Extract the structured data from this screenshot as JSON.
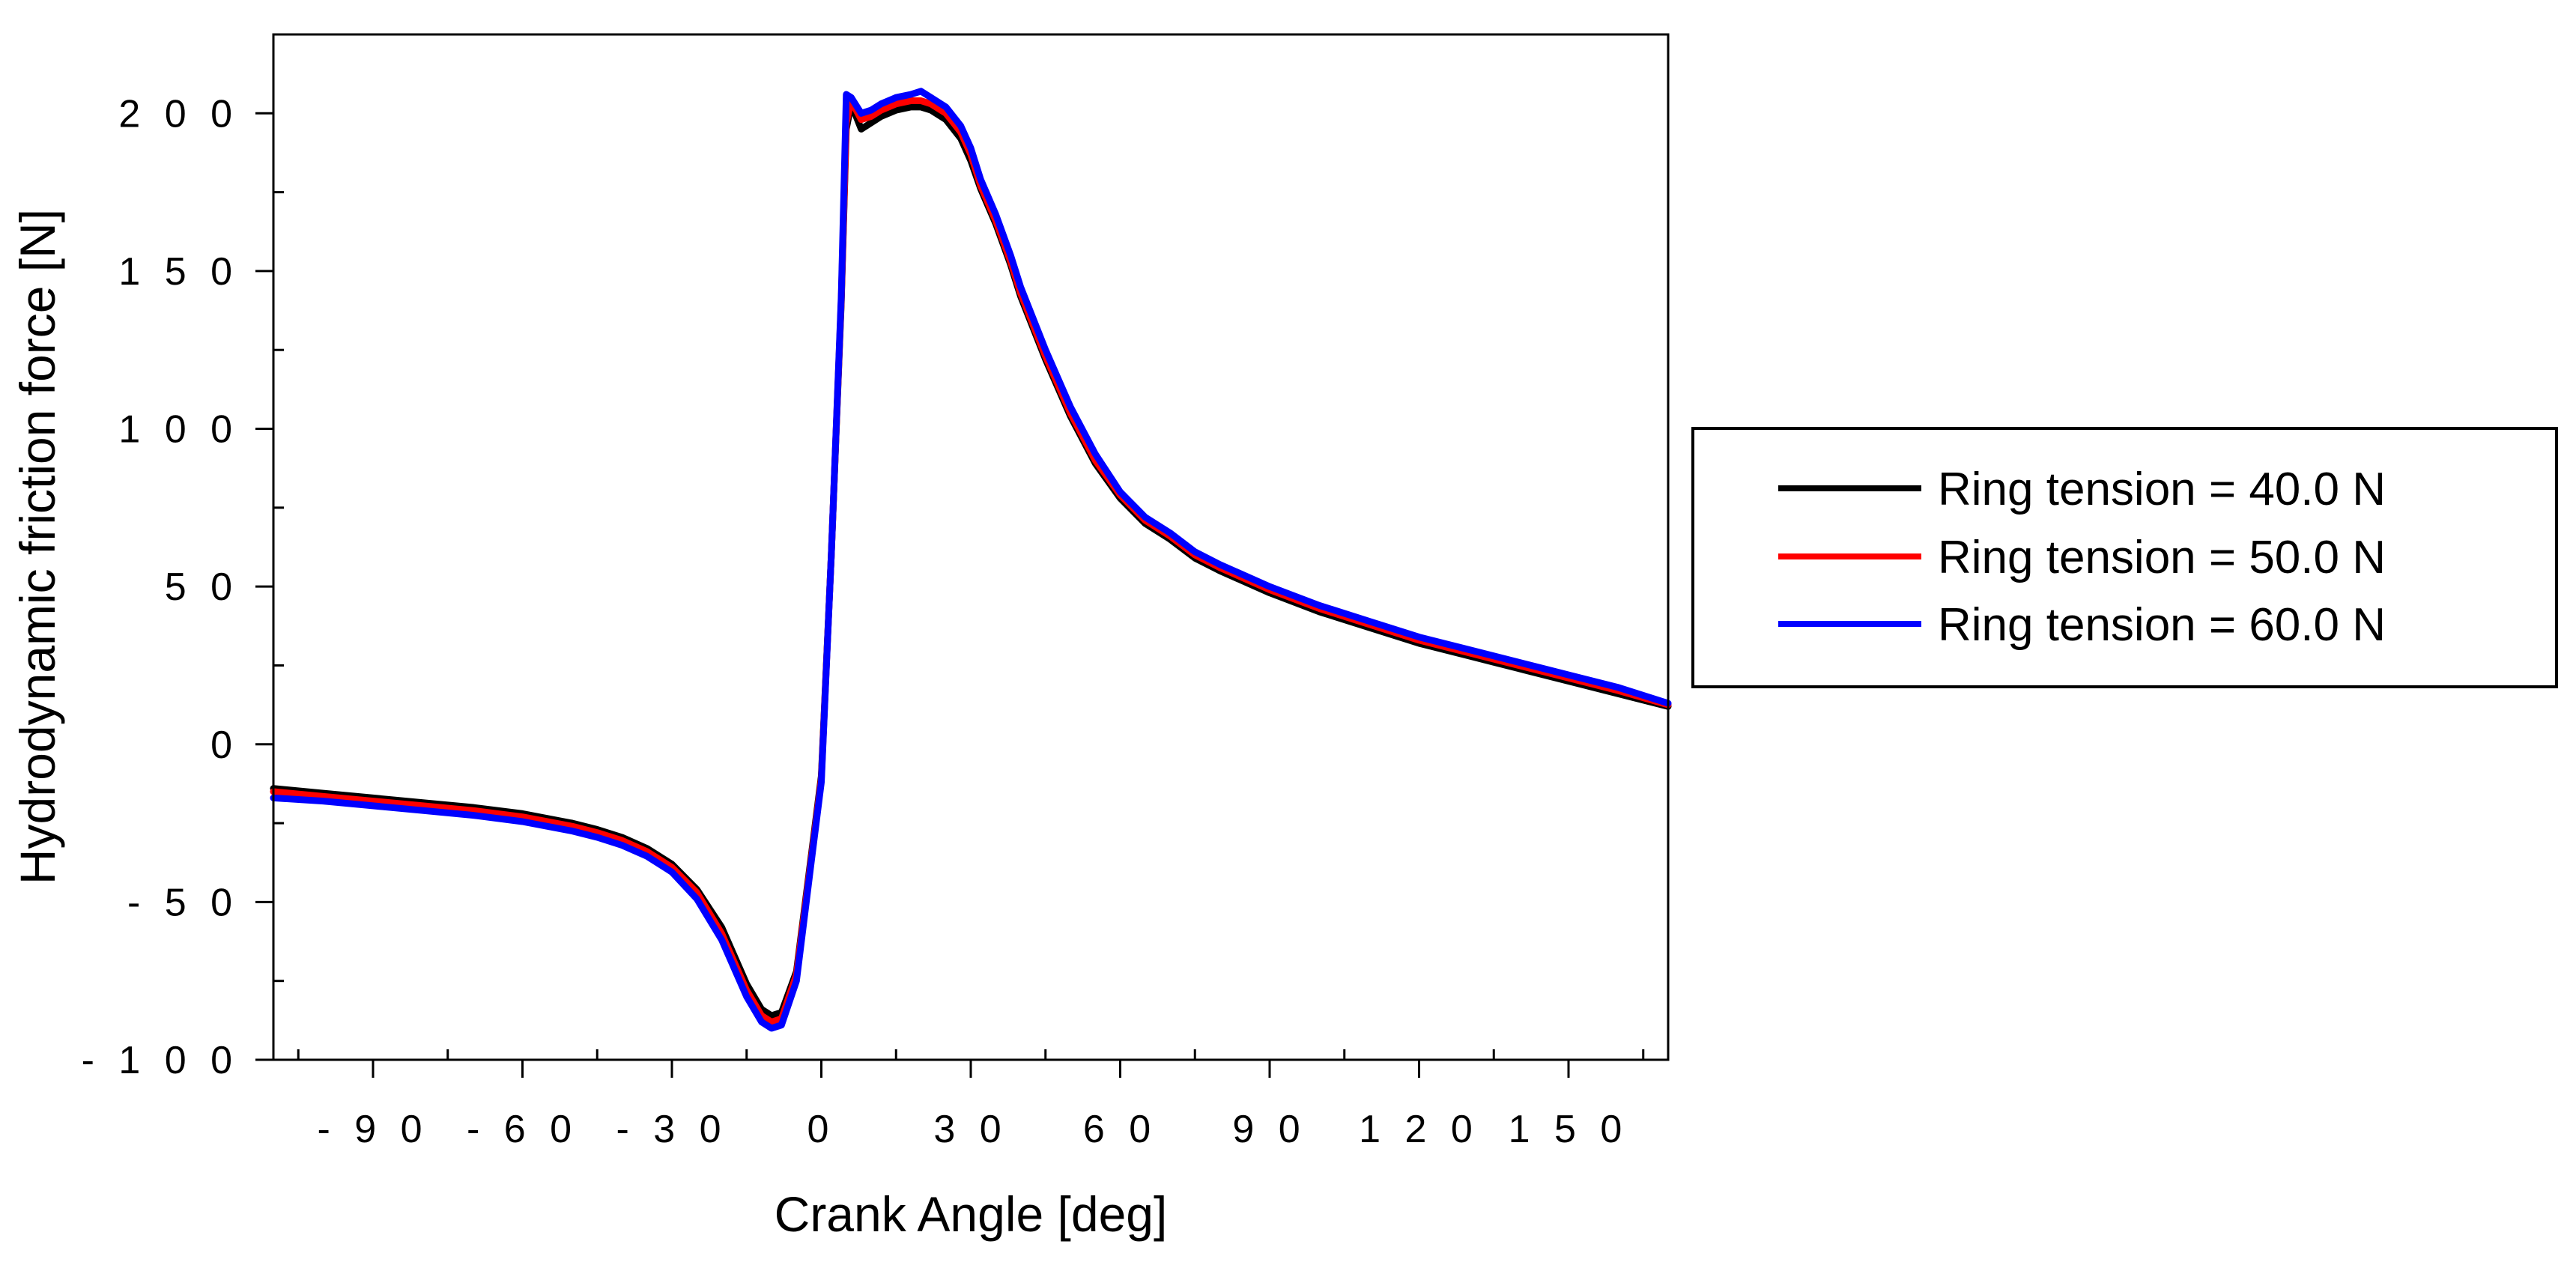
{
  "chart_data": {
    "type": "line",
    "title": "",
    "xlabel": "Crank Angle [deg]",
    "ylabel": "Hydrodynamic friction force [N]",
    "xlim": [
      -110,
      170
    ],
    "ylim": [
      -100,
      225
    ],
    "x_ticks": [
      -90,
      -60,
      -30,
      0,
      30,
      60,
      90,
      120,
      150
    ],
    "y_ticks": [
      -100,
      -50,
      0,
      50,
      100,
      150,
      200
    ],
    "x_tick_labels": [
      "- 9 0",
      "- 6 0",
      "- 3 0",
      "0",
      "3 0",
      "6 0",
      "9 0",
      "1 2 0",
      "1 5 0"
    ],
    "y_tick_labels": [
      "- 1 0 0",
      "- 5 0",
      "0",
      "5 0",
      "1 0 0",
      "1 5 0",
      "2 0 0"
    ],
    "grid": false,
    "legend_position": "right",
    "series": [
      {
        "name": "Ring tension = 40.0 N",
        "color": "#000000",
        "x": [
          -110,
          -100,
          -90,
          -80,
          -70,
          -60,
          -50,
          -45,
          -40,
          -35,
          -30,
          -25,
          -20,
          -15,
          -12,
          -10,
          -8,
          -5,
          -2,
          0,
          2,
          4,
          5,
          6,
          8,
          10,
          12,
          15,
          18,
          20,
          22,
          25,
          28,
          30,
          32,
          35,
          38,
          40,
          45,
          50,
          55,
          60,
          65,
          70,
          75,
          80,
          90,
          100,
          110,
          120,
          130,
          140,
          150,
          160,
          170
        ],
        "y": [
          -14,
          -15.5,
          -17,
          -18.5,
          -20,
          -22,
          -25,
          -27,
          -29.5,
          -33,
          -38,
          -46,
          -58,
          -76,
          -84,
          -86,
          -85,
          -72,
          -35,
          -10,
          60,
          140,
          195,
          203,
          195,
          197,
          199,
          201,
          202,
          202,
          201,
          198,
          192,
          185,
          176,
          165,
          152,
          142,
          122,
          104,
          89,
          78,
          70,
          65,
          59,
          55,
          48,
          42,
          37,
          32,
          28,
          24,
          20,
          16,
          12
        ]
      },
      {
        "name": "Ring tension = 50.0 N",
        "color": "#ff0000",
        "x": [
          -110,
          -100,
          -90,
          -80,
          -70,
          -60,
          -50,
          -45,
          -40,
          -35,
          -30,
          -25,
          -20,
          -15,
          -12,
          -10,
          -8,
          -5,
          -2,
          0,
          2,
          4,
          5,
          6,
          8,
          10,
          12,
          15,
          18,
          20,
          22,
          25,
          28,
          30,
          32,
          35,
          38,
          40,
          45,
          50,
          55,
          60,
          65,
          70,
          75,
          80,
          90,
          100,
          110,
          120,
          130,
          140,
          150,
          160,
          170
        ],
        "y": [
          -15,
          -16.5,
          -18,
          -19.5,
          -21,
          -23,
          -26,
          -28,
          -30.5,
          -34,
          -39,
          -47,
          -60,
          -78,
          -86,
          -88,
          -87,
          -73,
          -36,
          -11,
          60,
          141,
          197,
          204,
          198,
          199,
          201,
          203,
          204,
          204,
          203,
          200,
          194,
          187,
          177,
          166,
          153,
          143,
          123,
          105,
          90,
          79,
          71,
          66,
          60,
          56,
          49,
          43,
          38,
          33,
          29,
          25,
          21,
          17,
          12.5
        ]
      },
      {
        "name": "Ring tension = 60.0 N",
        "color": "#0000ff",
        "x": [
          -110,
          -100,
          -90,
          -80,
          -70,
          -60,
          -50,
          -45,
          -40,
          -35,
          -30,
          -25,
          -20,
          -15,
          -12,
          -10,
          -8,
          -5,
          -2,
          0,
          2,
          4,
          5,
          6,
          8,
          10,
          12,
          15,
          18,
          20,
          22,
          25,
          28,
          30,
          32,
          35,
          38,
          40,
          45,
          50,
          55,
          60,
          65,
          70,
          75,
          80,
          90,
          100,
          110,
          120,
          130,
          140,
          150,
          160,
          170
        ],
        "y": [
          -17,
          -18,
          -19.5,
          -21,
          -22.5,
          -24.5,
          -27.5,
          -29.5,
          -32,
          -35.5,
          -40.5,
          -49,
          -62,
          -80,
          -88,
          -90,
          -89,
          -75,
          -37,
          -12,
          60,
          142,
          206,
          205,
          200,
          201,
          203,
          205,
          206,
          207,
          205,
          202,
          196,
          189,
          179,
          168,
          155,
          145,
          125,
          107,
          92,
          80,
          72,
          67,
          61,
          57,
          50,
          44,
          39,
          34,
          30,
          26,
          22,
          18,
          13
        ]
      }
    ]
  }
}
